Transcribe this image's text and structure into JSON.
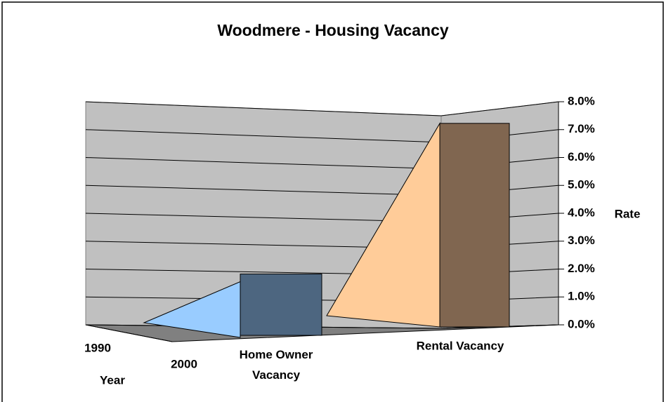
{
  "chart_data": {
    "type": "bar3d",
    "title": "Woodmere - Housing Vacancy",
    "categories": [
      "Home Owner Vacancy",
      "Rental Vacancy"
    ],
    "series": [
      {
        "name": "1990",
        "colors": [
          "#99ccff",
          "#ffcc99"
        ],
        "values": [
          2.0,
          7.3
        ]
      },
      {
        "name": "2000",
        "colors": [
          "#4d6680",
          "#806650"
        ],
        "values": [
          2.2,
          7.3
        ]
      }
    ],
    "y_axis_label": "Rate",
    "series_axis_label": "Year",
    "ylim": [
      0,
      8
    ],
    "yticks": [
      {
        "value": 0,
        "label": "0.0%"
      },
      {
        "value": 1,
        "label": "1.0%"
      },
      {
        "value": 2,
        "label": "2.0%"
      },
      {
        "value": 3,
        "label": "3.0%"
      },
      {
        "value": 4,
        "label": "4.0%"
      },
      {
        "value": 5,
        "label": "5.0%"
      },
      {
        "value": 6,
        "label": "6.0%"
      },
      {
        "value": 7,
        "label": "7.0%"
      },
      {
        "value": 8,
        "label": "8.0%"
      }
    ],
    "grid": true
  }
}
